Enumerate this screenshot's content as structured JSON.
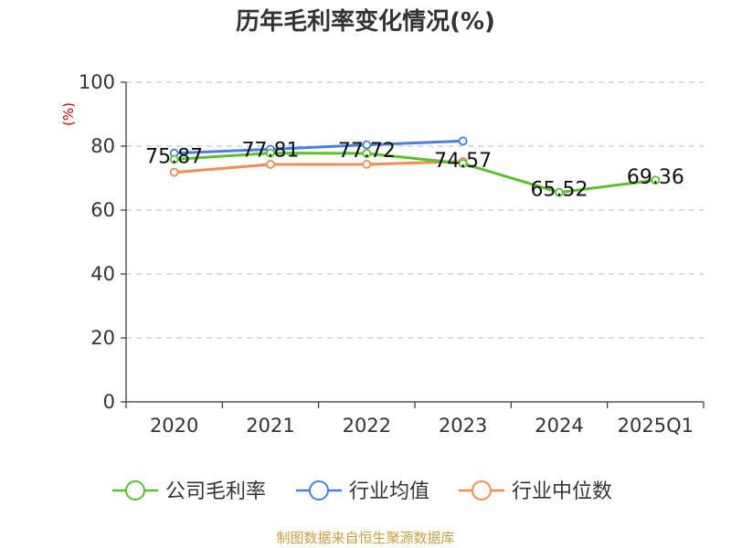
{
  "chart_data": {
    "type": "line",
    "title": "历年毛利率变化情况(%)",
    "ylabel": "(%)",
    "categories": [
      "2020",
      "2021",
      "2022",
      "2023",
      "2024",
      "2025Q1"
    ],
    "ylim": [
      0,
      100
    ],
    "yticks": [
      0,
      20,
      40,
      60,
      80,
      100
    ],
    "grid": true,
    "legend_position": "bottom",
    "series": [
      {
        "name": "公司毛利率",
        "color": "#5cc02c",
        "values": [
          75.87,
          77.81,
          77.72,
          74.57,
          65.52,
          69.36
        ],
        "labels": [
          "75.87",
          "77.81",
          "77.72",
          "74.57",
          "65.52",
          "69.36"
        ]
      },
      {
        "name": "行业均值",
        "color": "#4a7fe0",
        "values": [
          77.8,
          79.0,
          80.4,
          81.6,
          null,
          null
        ]
      },
      {
        "name": "行业中位数",
        "color": "#f28c52",
        "values": [
          71.8,
          74.3,
          74.3,
          75.2,
          null,
          null
        ]
      }
    ],
    "source": "制图数据来自恒生聚源数据库"
  }
}
